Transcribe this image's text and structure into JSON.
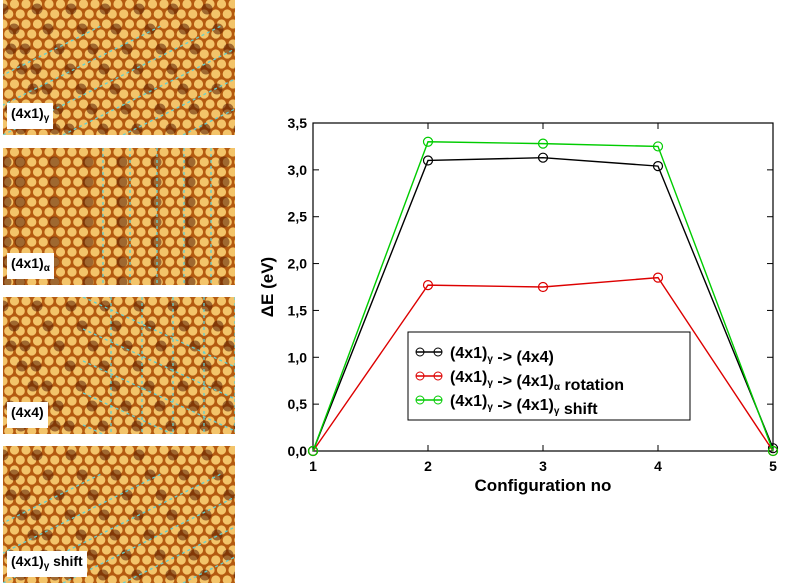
{
  "panels": [
    {
      "label_main": "(4x1)",
      "label_sub": "γ",
      "label_suffix": "",
      "pattern": "diagonal"
    },
    {
      "label_main": "(4x1)",
      "label_sub": "α",
      "label_suffix": "",
      "pattern": "vertical"
    },
    {
      "label_main": "(4x4)",
      "label_sub": "",
      "label_suffix": "",
      "pattern": "grid"
    },
    {
      "label_main": "(4x1)",
      "label_sub": "γ",
      "label_suffix": " shift",
      "pattern": "diagonal"
    }
  ],
  "colors": {
    "surface_bg": "#b45a10",
    "atom": "#f3c46a",
    "dark_spot": "#5a1e00",
    "guide_line": "#66d0d0"
  },
  "chart_data": {
    "type": "line",
    "xlabel": "Configuration no",
    "ylabel": "ΔE (eV)",
    "xlim": [
      1,
      5
    ],
    "ylim": [
      0,
      3.5
    ],
    "x_ticks": [
      "1",
      "2",
      "3",
      "4",
      "5"
    ],
    "y_ticks": [
      "0,0",
      "0,5",
      "1,0",
      "1,5",
      "2,0",
      "2,5",
      "3,0",
      "3,5"
    ],
    "x": [
      1,
      2,
      3,
      4,
      5
    ],
    "legend_position": "center-left",
    "series": [
      {
        "name_main": "(4x1)",
        "name_sub": "γ",
        "name_rest": " -> (4x4)",
        "color": "#000000",
        "values": [
          0.0,
          3.1,
          3.13,
          3.04,
          0.03
        ]
      },
      {
        "name_main": "(4x1)",
        "name_sub": "γ",
        "name_rest": " -> (4x1)",
        "name_sub2": "α",
        "name_rest2": " rotation",
        "color": "#dd0000",
        "values": [
          0.0,
          1.77,
          1.75,
          1.85,
          0.0
        ]
      },
      {
        "name_main": "(4x1)",
        "name_sub": "γ",
        "name_rest": " -> (4x1)",
        "name_sub2": "γ",
        "name_rest2": " shift",
        "color": "#00cc00",
        "values": [
          0.0,
          3.3,
          3.28,
          3.25,
          0.0
        ]
      }
    ]
  }
}
